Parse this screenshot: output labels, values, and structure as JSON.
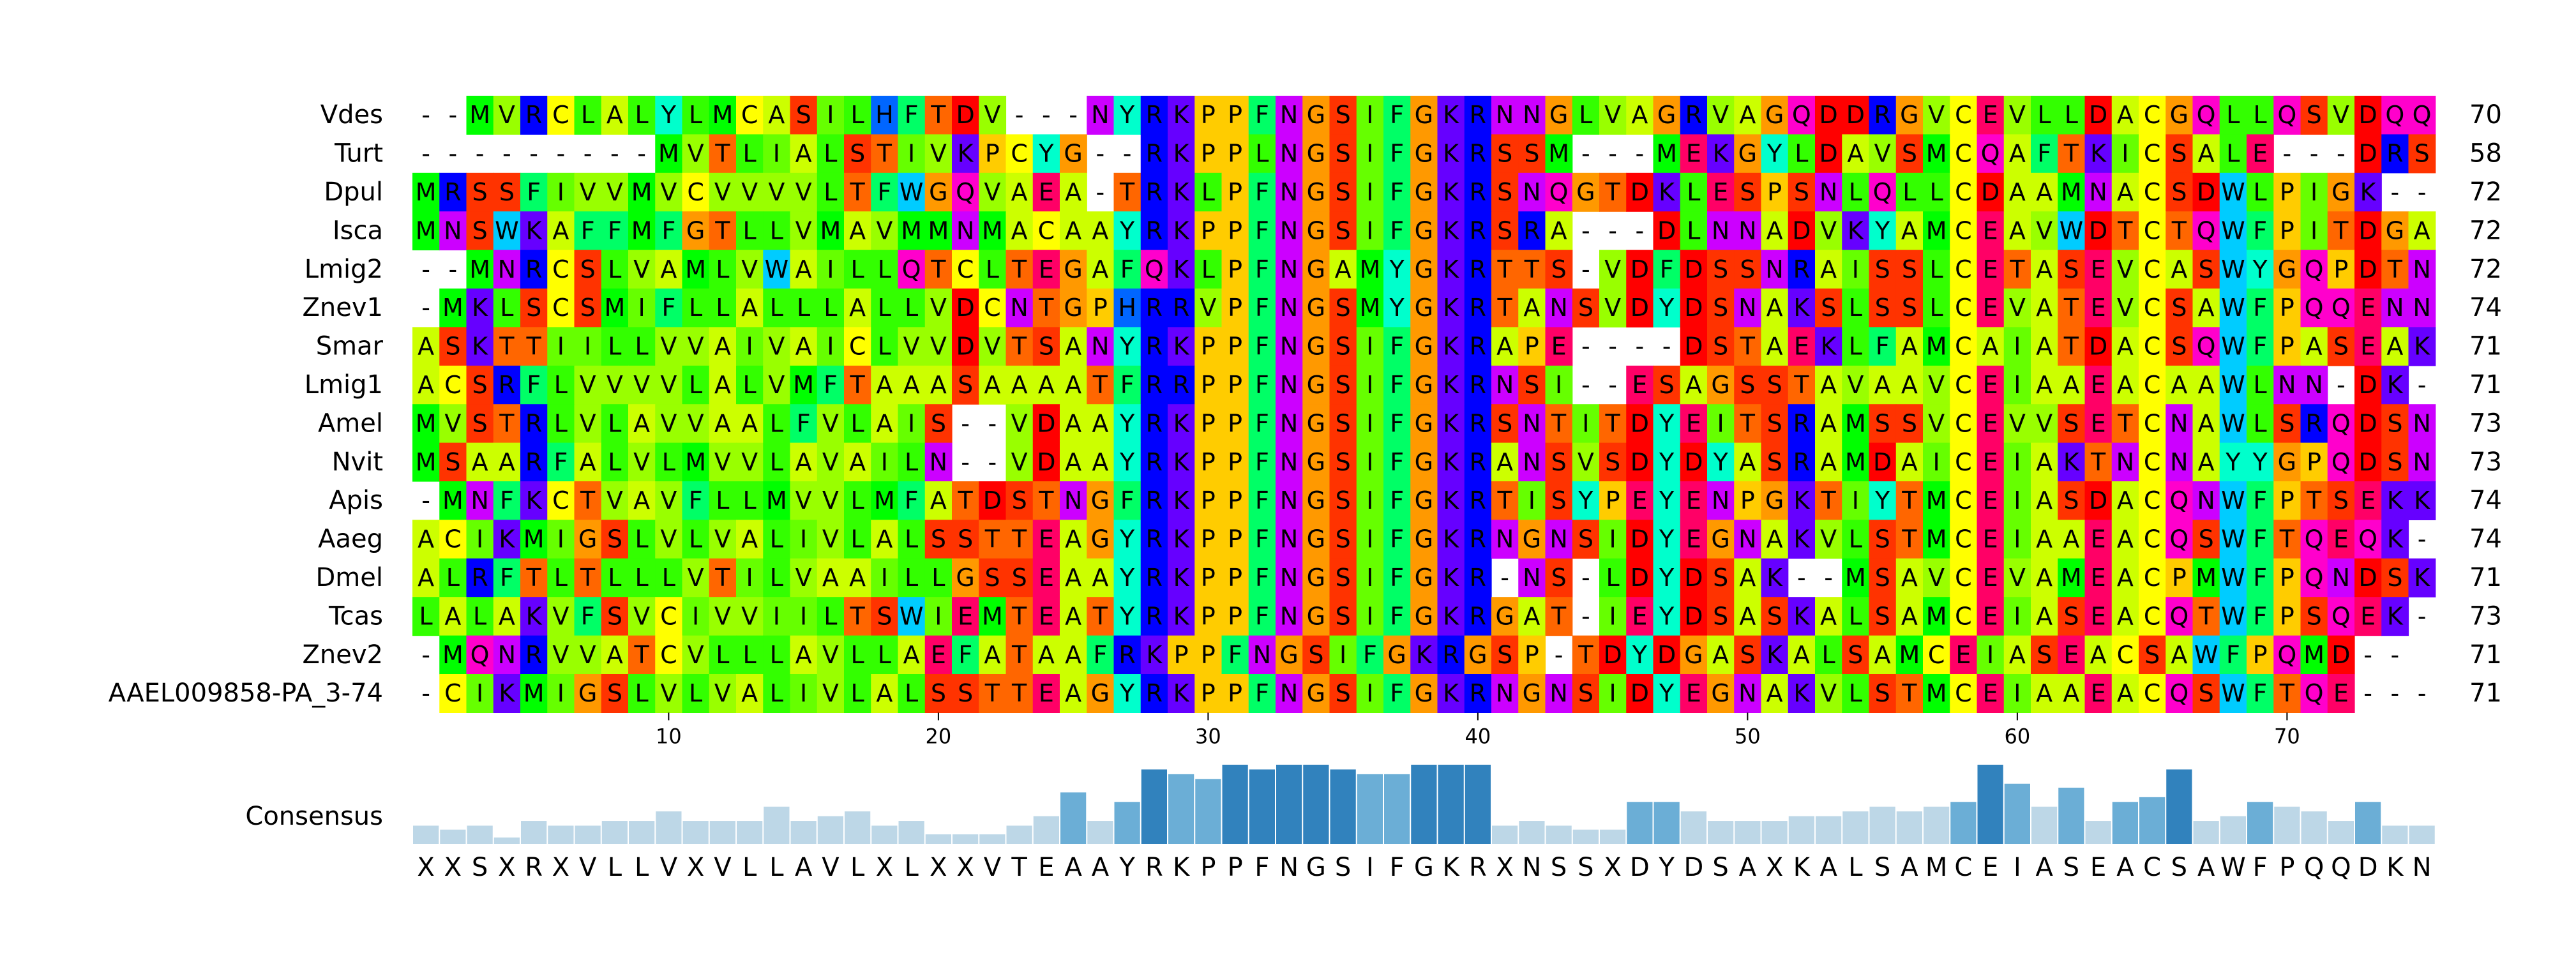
{
  "alignment": {
    "sequences": [
      {
        "name": "Vdes",
        "seq": "--MVRCLALYLMCASILHFTDV---NYRKPPFNGSIFGKRNNGLVAGRVAGQDDRGVCEVLLDACGQLLQSVDQQ",
        "count": "70"
      },
      {
        "name": "Turt",
        "seq": "---------MVTLIALSTIVKPCYG--RKPPLNGSIFGKRSSM---MEKGYLDAVSMCQAFTKICSALE---DRS",
        "count": "58"
      },
      {
        "name": "Dpul",
        "seq": "MRSSFIVVMVCVVVVLTFWGQVAEA-TRKLPFNGSIFGKRSNQGTDKLESPSNLQLLCDAAMNACSDWLPIGK--",
        "count": "72"
      },
      {
        "name": "Isca",
        "seq": "MNSWKAFFMFGTLLVMAVMMNMACAAYRKPPFNGSIFGKRSRA---DLNNADVKYAMCEAVWDTCTQWFPITDGA",
        "count": "72"
      },
      {
        "name": "Lmig2",
        "seq": "--MNRCSLVAMLVWAILLQTCLTEGAFQKLPFNGAMYGKRTTS-VDFDSSNRAISSLCETASEVCASWYGQPDTN",
        "count": "72"
      },
      {
        "name": "Znev1",
        "seq": "-MKLSCSMIFLLALLLALLVDCNTGPHRRVPFNGSMYGKRTANSVDYDSNAKSLSSLCEVATEVCSAWFPQQENN",
        "count": "74"
      },
      {
        "name": "Smar",
        "seq": "ASKTTIILLVVAIVAICLVVDVTSANYRKPPFNGSIFGKRAPE----DSTAEKLFAMCAIATDACSQWFPASEAK",
        "count": "71"
      },
      {
        "name": "Lmig1",
        "seq": "ACSRFLVVVVLALVMFTAAASAAAATFRRPPFNGSIFGKRNSI--ESAGSSTAVAAVCEIAAEACAAWLNN-DK-",
        "count": "71"
      },
      {
        "name": "Amel",
        "seq": "MVSTRLVLAVVAALFVLAIS--VDAAYRKPPFNGSIFGKRSNTITDYEITSRAMSSVCEVVSETCNAWLSRQDSN",
        "count": "73"
      },
      {
        "name": "Nvit",
        "seq": "MSAARFALVLMVVLAVAILN--VDAAYRKPPFNGSIFGKRANSVSDYDYASRAMDAICEIAKTNCNAYYGPQDSN",
        "count": "73"
      },
      {
        "name": "Apis",
        "seq": "-MNFKCTVAVFLLMVVLMFATDSTNGFRKPPFNGSIFGKRTISYPEYENPGKTIYTMCEIASDACQNWFPTSEKK",
        "count": "74"
      },
      {
        "name": "Aaeg",
        "seq": "ACIKMIGSLVLVALIVLALSSTTEAGYRKPPFNGSIFGKRNGNSIDYEGNAKVLSTMCEIAAEACQSWFTQEQK-",
        "count": "74"
      },
      {
        "name": "Dmel",
        "seq": "ALRFTLTLLLVTILVAAILLGSSEAAYRKPPFNGSIFGKR-NS-LDYDSAK--MSAVCEVAMEACPMWFPQNDSK",
        "count": "71"
      },
      {
        "name": "Tcas",
        "seq": "LALAKVFSVCIVVIILTSWIEMTEATYRKPPFNGSIFGKRGAT-IEYDSASKALSAMCEIASEACQTWFPSQEK-",
        "count": "73"
      },
      {
        "name": "Znev2",
        "seq": "-MQNRVVATCVLLLAVLLAEFATAAFRKPPFNGSIFGKRGSP-TDYDGASKALSAMCEIASEACSAWFPQMD--",
        "count": "71"
      },
      {
        "name": "AAEL009858-PA_3-74",
        "seq": "-CIKMIGSLVLVALIVLALSSTTEAGYRKPPFNGSIFGKRNGNSIDYEGNAKVLSTMCEIAAEACQSWFTQE---",
        "count": "71"
      }
    ],
    "x_ticks": [
      "10",
      "20",
      "30",
      "40",
      "50",
      "60",
      "70"
    ],
    "consensus": {
      "label": "Consensus",
      "sequence": "XXSXRXVLLVXVLLAVLXLXXVTEAAYRKPPFNGSIFGKRXNSSXDYDSAXKALSAMCEIASEACSAWFPQQDKN",
      "conservation": [
        0.23,
        0.18,
        0.23,
        0.08,
        0.29,
        0.23,
        0.23,
        0.29,
        0.29,
        0.41,
        0.29,
        0.29,
        0.29,
        0.47,
        0.29,
        0.35,
        0.41,
        0.23,
        0.29,
        0.12,
        0.12,
        0.12,
        0.23,
        0.35,
        0.65,
        0.29,
        0.53,
        0.94,
        0.88,
        0.82,
        1.0,
        0.94,
        1.0,
        1.0,
        0.94,
        0.88,
        0.88,
        1.0,
        1.0,
        1.0,
        0.23,
        0.29,
        0.23,
        0.18,
        0.18,
        0.53,
        0.53,
        0.41,
        0.29,
        0.29,
        0.29,
        0.35,
        0.35,
        0.41,
        0.47,
        0.41,
        0.47,
        0.53,
        1.0,
        0.76,
        0.47,
        0.71,
        0.29,
        0.53,
        0.59,
        0.94,
        0.29,
        0.35,
        0.53,
        0.47,
        0.41,
        0.29,
        0.53,
        0.23,
        0.23
      ]
    },
    "residue_colors": {
      "A": "#ccff00",
      "C": "#ffff00",
      "D": "#ff0000",
      "E": "#ff0066",
      "F": "#00ff66",
      "G": "#ff9900",
      "H": "#0066ff",
      "I": "#66ff00",
      "K": "#6600ff",
      "L": "#33ff00",
      "M": "#00ff00",
      "N": "#cc00ff",
      "P": "#ffcc00",
      "Q": "#ff00cc",
      "R": "#0000ff",
      "S": "#ff3300",
      "T": "#ff6600",
      "V": "#99ff00",
      "W": "#00ccff",
      "Y": "#00ffcc"
    },
    "consensus_bar_colors": [
      "#bdd7e7",
      "#6baed6",
      "#3182bd"
    ]
  }
}
